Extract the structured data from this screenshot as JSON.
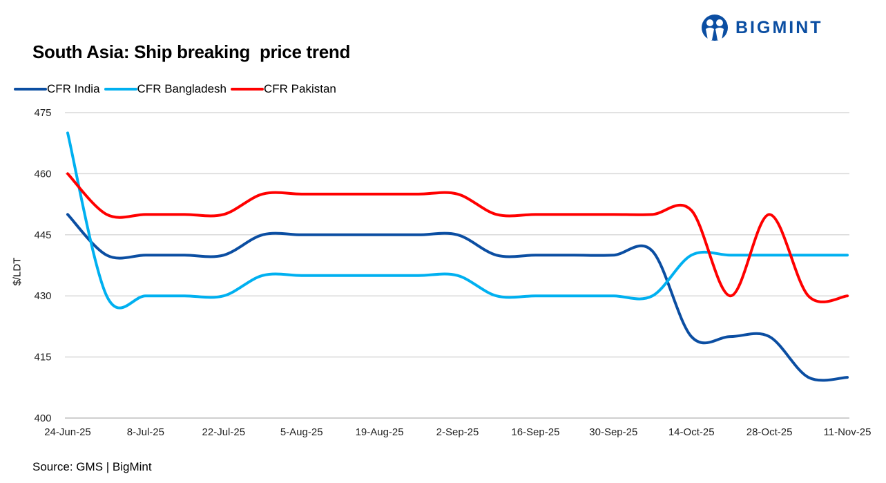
{
  "logo": {
    "text": "BIGMINT",
    "color": "#0b4ea2"
  },
  "source": "Source: GMS | BigMint",
  "chart_data": {
    "type": "line",
    "title": "South Asia: Ship breaking  price trend",
    "xlabel": "",
    "ylabel": "$/LDT",
    "ylim": [
      400,
      475
    ],
    "yticks": [
      400,
      415,
      430,
      445,
      460,
      475
    ],
    "grid": true,
    "legend_position": "top-left",
    "smooth": true,
    "x": [
      "24-Jun-25",
      "1-Jul-25",
      "8-Jul-25",
      "15-Jul-25",
      "22-Jul-25",
      "29-Jul-25",
      "5-Aug-25",
      "12-Aug-25",
      "19-Aug-25",
      "26-Aug-25",
      "2-Sep-25",
      "9-Sep-25",
      "16-Sep-25",
      "23-Sep-25",
      "30-Sep-25",
      "7-Oct-25",
      "14-Oct-25",
      "21-Oct-25",
      "28-Oct-25",
      "4-Nov-25",
      "11-Nov-25"
    ],
    "xticks": [
      "24-Jun-25",
      "8-Jul-25",
      "22-Jul-25",
      "5-Aug-25",
      "19-Aug-25",
      "2-Sep-25",
      "16-Sep-25",
      "30-Sep-25",
      "14-Oct-25",
      "28-Oct-25",
      "11-Nov-25"
    ],
    "series": [
      {
        "name": "CFR India",
        "color": "#0b4ea2",
        "values": [
          450,
          440,
          440,
          440,
          440,
          445,
          445,
          445,
          445,
          445,
          445,
          440,
          440,
          440,
          440,
          441,
          420,
          420,
          420,
          410,
          410
        ]
      },
      {
        "name": "CFR Bangladesh",
        "color": "#00b0f0",
        "values": [
          470,
          430,
          430,
          430,
          430,
          435,
          435,
          435,
          435,
          435,
          435,
          430,
          430,
          430,
          430,
          430,
          440,
          440,
          440,
          440,
          440
        ]
      },
      {
        "name": "CFR Pakistan",
        "color": "#ff0000",
        "values": [
          460,
          450,
          450,
          450,
          450,
          455,
          455,
          455,
          455,
          455,
          455,
          450,
          450,
          450,
          450,
          450,
          451,
          430,
          450,
          430,
          430
        ]
      }
    ]
  }
}
